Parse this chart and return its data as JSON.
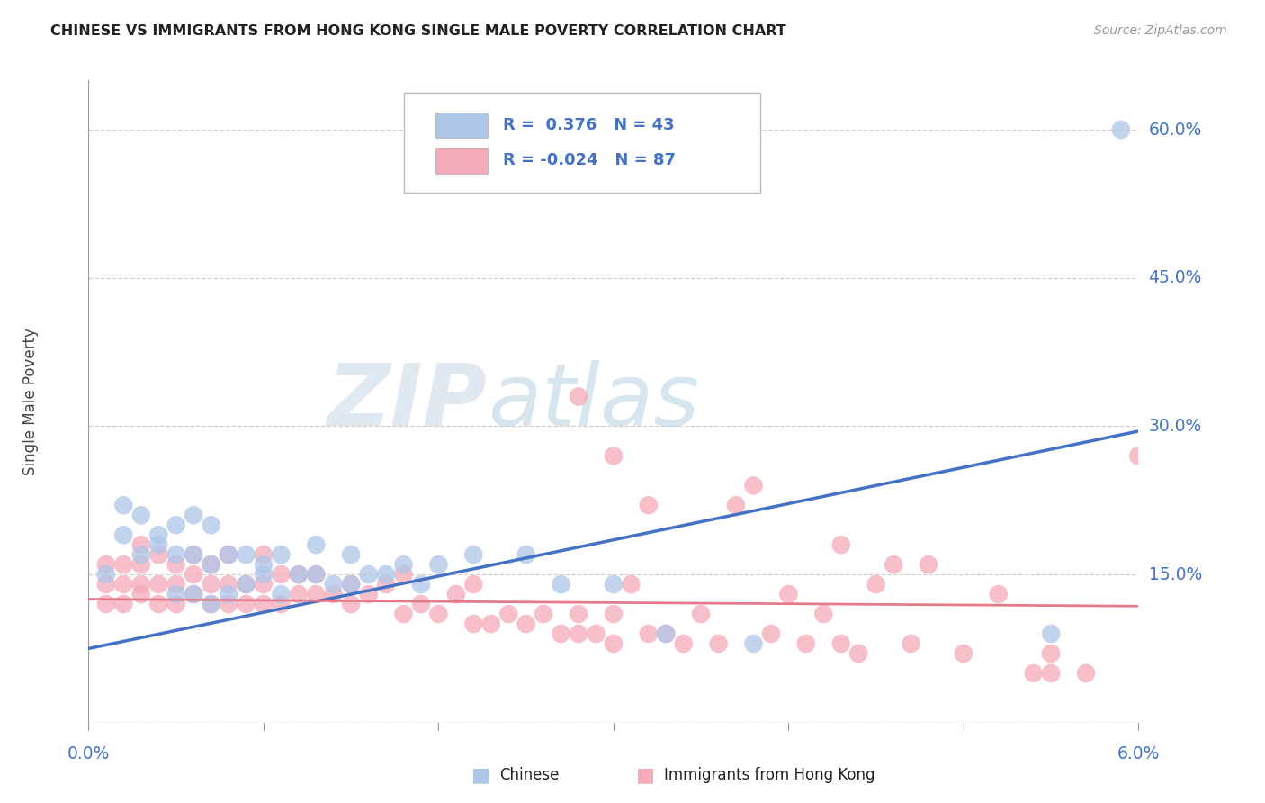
{
  "title": "CHINESE VS IMMIGRANTS FROM HONG KONG SINGLE MALE POVERTY CORRELATION CHART",
  "source": "Source: ZipAtlas.com",
  "ylabel": "Single Male Poverty",
  "xlim": [
    0.0,
    0.06
  ],
  "ylim": [
    0.0,
    0.65
  ],
  "ytick_vals": [
    0.0,
    0.15,
    0.3,
    0.45,
    0.6
  ],
  "ytick_labels": [
    "",
    "15.0%",
    "30.0%",
    "45.0%",
    "60.0%"
  ],
  "xtick_vals": [
    0.0,
    0.01,
    0.02,
    0.03,
    0.04,
    0.05,
    0.06
  ],
  "xtick_labels": [
    "0.0%",
    "",
    "",
    "",
    "",
    "",
    "6.0%"
  ],
  "blue_color": "#4472c4",
  "pink_color": "#e57a8a",
  "blue_scatter_color": "#aec6e8",
  "pink_scatter_color": "#f4aab9",
  "blue_line_x": [
    0.0,
    0.06
  ],
  "blue_line_y": [
    0.075,
    0.295
  ],
  "pink_line_x": [
    0.0,
    0.06
  ],
  "pink_line_y": [
    0.125,
    0.118
  ],
  "blue_scatter_x": [
    0.001,
    0.002,
    0.002,
    0.003,
    0.003,
    0.004,
    0.004,
    0.005,
    0.005,
    0.005,
    0.006,
    0.006,
    0.006,
    0.007,
    0.007,
    0.007,
    0.008,
    0.008,
    0.009,
    0.009,
    0.01,
    0.01,
    0.011,
    0.011,
    0.012,
    0.013,
    0.013,
    0.014,
    0.015,
    0.015,
    0.016,
    0.017,
    0.018,
    0.019,
    0.02,
    0.022,
    0.025,
    0.027,
    0.03,
    0.033,
    0.038,
    0.055,
    0.059
  ],
  "blue_scatter_y": [
    0.15,
    0.19,
    0.22,
    0.17,
    0.21,
    0.18,
    0.19,
    0.13,
    0.17,
    0.2,
    0.13,
    0.17,
    0.21,
    0.12,
    0.16,
    0.2,
    0.13,
    0.17,
    0.14,
    0.17,
    0.15,
    0.16,
    0.13,
    0.17,
    0.15,
    0.15,
    0.18,
    0.14,
    0.14,
    0.17,
    0.15,
    0.15,
    0.16,
    0.14,
    0.16,
    0.17,
    0.17,
    0.14,
    0.14,
    0.09,
    0.08,
    0.09,
    0.6
  ],
  "pink_scatter_x": [
    0.001,
    0.001,
    0.001,
    0.002,
    0.002,
    0.002,
    0.003,
    0.003,
    0.003,
    0.003,
    0.004,
    0.004,
    0.004,
    0.005,
    0.005,
    0.005,
    0.006,
    0.006,
    0.006,
    0.007,
    0.007,
    0.007,
    0.008,
    0.008,
    0.008,
    0.009,
    0.009,
    0.01,
    0.01,
    0.01,
    0.011,
    0.011,
    0.012,
    0.012,
    0.013,
    0.013,
    0.014,
    0.015,
    0.015,
    0.016,
    0.017,
    0.018,
    0.018,
    0.019,
    0.02,
    0.021,
    0.022,
    0.022,
    0.023,
    0.024,
    0.025,
    0.026,
    0.027,
    0.028,
    0.028,
    0.029,
    0.03,
    0.03,
    0.031,
    0.032,
    0.033,
    0.034,
    0.035,
    0.036,
    0.037,
    0.038,
    0.039,
    0.04,
    0.041,
    0.042,
    0.043,
    0.044,
    0.045,
    0.047,
    0.048,
    0.05,
    0.052,
    0.054,
    0.055,
    0.057,
    0.028,
    0.03,
    0.032,
    0.043,
    0.046,
    0.055,
    0.06
  ],
  "pink_scatter_y": [
    0.12,
    0.14,
    0.16,
    0.12,
    0.14,
    0.16,
    0.13,
    0.14,
    0.16,
    0.18,
    0.12,
    0.14,
    0.17,
    0.12,
    0.14,
    0.16,
    0.13,
    0.15,
    0.17,
    0.12,
    0.14,
    0.16,
    0.12,
    0.14,
    0.17,
    0.12,
    0.14,
    0.12,
    0.14,
    0.17,
    0.12,
    0.15,
    0.13,
    0.15,
    0.13,
    0.15,
    0.13,
    0.12,
    0.14,
    0.13,
    0.14,
    0.11,
    0.15,
    0.12,
    0.11,
    0.13,
    0.1,
    0.14,
    0.1,
    0.11,
    0.1,
    0.11,
    0.09,
    0.09,
    0.11,
    0.09,
    0.08,
    0.11,
    0.14,
    0.09,
    0.09,
    0.08,
    0.11,
    0.08,
    0.22,
    0.24,
    0.09,
    0.13,
    0.08,
    0.11,
    0.08,
    0.07,
    0.14,
    0.08,
    0.16,
    0.07,
    0.13,
    0.05,
    0.05,
    0.05,
    0.33,
    0.27,
    0.22,
    0.18,
    0.16,
    0.07,
    0.27
  ],
  "background_color": "#ffffff",
  "grid_color": "#d0d0d0",
  "title_color": "#222222",
  "axis_label_color": "#4472c4",
  "ylabel_color": "#444444",
  "watermark_zip_color": "#c5d5e8",
  "watermark_atlas_color": "#aecde0"
}
